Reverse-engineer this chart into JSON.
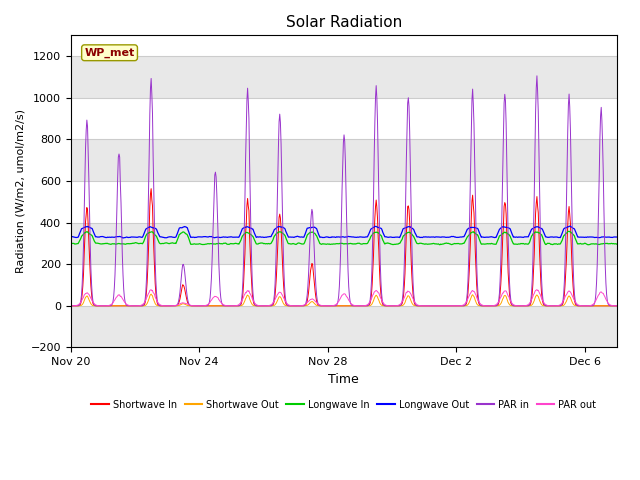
{
  "title": "Solar Radiation",
  "xlabel": "Time",
  "ylabel": "Radiation (W/m2, umol/m2/s)",
  "ylim": [
    -200,
    1300
  ],
  "yticks": [
    -200,
    0,
    200,
    400,
    600,
    800,
    1000,
    1200
  ],
  "x_tick_labels": [
    "Nov 20",
    "Nov 24",
    "Nov 28",
    "Dec 2",
    "Dec 6"
  ],
  "x_tick_positions": [
    0,
    4,
    8,
    12,
    16
  ],
  "n_days": 17,
  "label_box_text": "WP_met",
  "label_box_bg": "#ffffcc",
  "label_box_edge": "#999900",
  "label_box_text_color": "#8b0000",
  "fig_bg_color": "#ffffff",
  "plot_bg_color": "#ffffff",
  "colors": {
    "shortwave_in": "#ff0000",
    "shortwave_out": "#ffa500",
    "longwave_in": "#00cc00",
    "longwave_out": "#0000ff",
    "par_in": "#9933cc",
    "par_out": "#ff44cc"
  },
  "legend_labels": [
    "Shortwave In",
    "Shortwave Out",
    "Longwave In",
    "Longwave Out",
    "PAR in",
    "PAR out"
  ],
  "day_peaks_sw": [
    480,
    0,
    550,
    100,
    0,
    520,
    430,
    200,
    0,
    510,
    490,
    0,
    520,
    500,
    520,
    470,
    0
  ],
  "day_peaks_par": [
    900,
    730,
    1080,
    200,
    650,
    1050,
    910,
    460,
    820,
    1060,
    1010,
    0,
    1030,
    1020,
    1100,
    1010,
    950
  ]
}
